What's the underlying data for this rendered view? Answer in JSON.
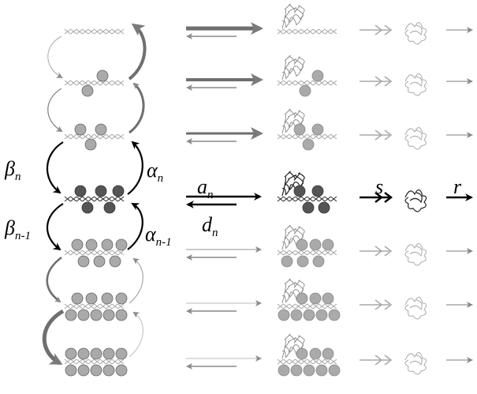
{
  "labels": {
    "beta_n": "β",
    "beta_n_sub": "n",
    "beta_n1": "β",
    "beta_n1_sub": "n-1",
    "alpha_n": "α",
    "alpha_n_sub": "n",
    "alpha_n1": "α",
    "alpha_n1_sub": "n-1",
    "a_n": "a",
    "a_n_sub": "n",
    "d_n": "d",
    "d_n_sub": "n",
    "s": "s",
    "r": "r"
  },
  "colors": {
    "black": "#000000",
    "dark_gray": "#6f6f6f",
    "mid_gray": "#888888",
    "light_gray": "#a9a9a9",
    "pale_gray": "#bdbdbd",
    "ball_dark": "#555555",
    "ball_mid": "#999999",
    "ball_light": "#aaaaaa"
  }
}
